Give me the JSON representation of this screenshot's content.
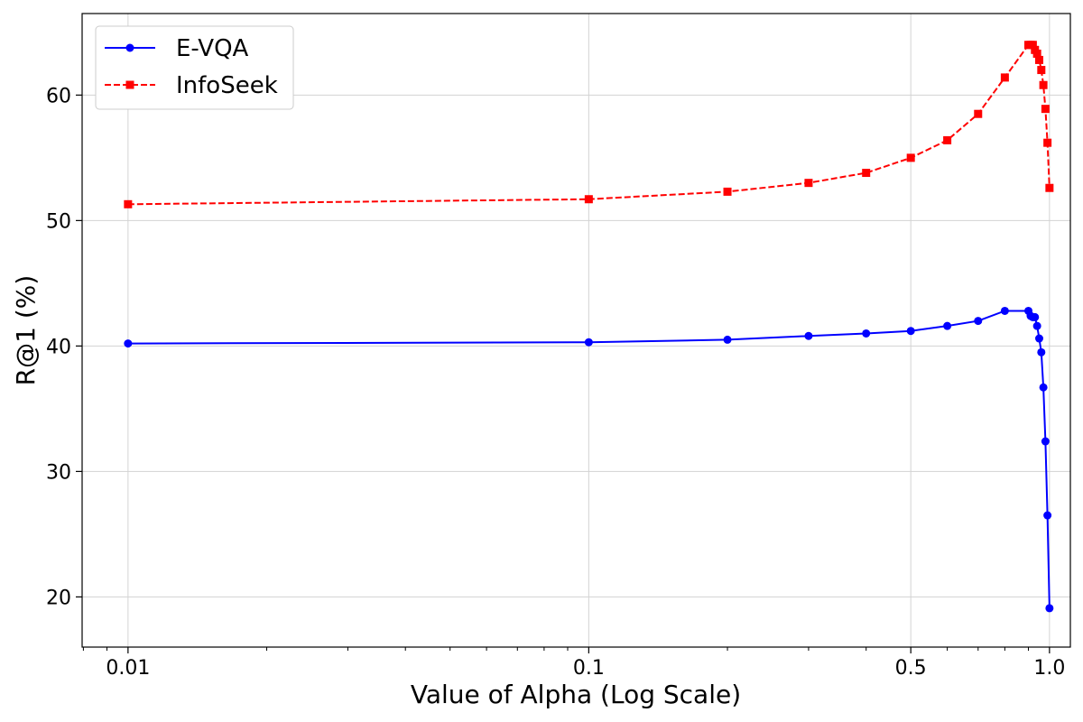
{
  "chart_data": {
    "type": "line",
    "xscale": "log",
    "xlabel": "Value of Alpha (Log Scale)",
    "ylabel": "R@1 (%)",
    "xlim": [
      0.00795,
      1.11
    ],
    "ylim": [
      16,
      66.5
    ],
    "grid": true,
    "legend_position": "top-left",
    "x_ticks": [
      0.01,
      0.1,
      0.5,
      1.0
    ],
    "x_tick_labels": [
      "0.01",
      "0.1",
      "0.5",
      "1.0"
    ],
    "y_ticks": [
      20,
      30,
      40,
      50,
      60
    ],
    "y_tick_labels": [
      "20",
      "30",
      "40",
      "50",
      "60"
    ],
    "series": [
      {
        "name": "E-VQA",
        "color": "#0000ff",
        "line_style": "solid",
        "marker": "circle",
        "x": [
          0.01,
          0.1,
          0.2,
          0.3,
          0.4,
          0.5,
          0.6,
          0.7,
          0.8,
          0.9,
          0.91,
          0.92,
          0.93,
          0.94,
          0.95,
          0.96,
          0.97,
          0.98,
          0.99,
          1.0
        ],
        "y": [
          40.2,
          40.3,
          40.5,
          40.8,
          41.0,
          41.2,
          41.6,
          42.0,
          42.8,
          42.8,
          42.4,
          42.3,
          42.3,
          41.6,
          40.6,
          39.5,
          36.7,
          32.4,
          26.5,
          19.1
        ]
      },
      {
        "name": "InfoSeek",
        "color": "#ff0000",
        "line_style": "dashed",
        "marker": "square",
        "x": [
          0.01,
          0.1,
          0.2,
          0.3,
          0.4,
          0.5,
          0.6,
          0.7,
          0.8,
          0.9,
          0.91,
          0.92,
          0.93,
          0.94,
          0.95,
          0.96,
          0.97,
          0.98,
          0.99,
          1.0
        ],
        "y": [
          51.3,
          51.7,
          52.3,
          53.0,
          53.8,
          55.0,
          56.4,
          58.5,
          61.4,
          64.0,
          64.0,
          64.0,
          63.6,
          63.3,
          62.8,
          62.0,
          60.8,
          58.9,
          56.2,
          52.6
        ]
      }
    ]
  }
}
